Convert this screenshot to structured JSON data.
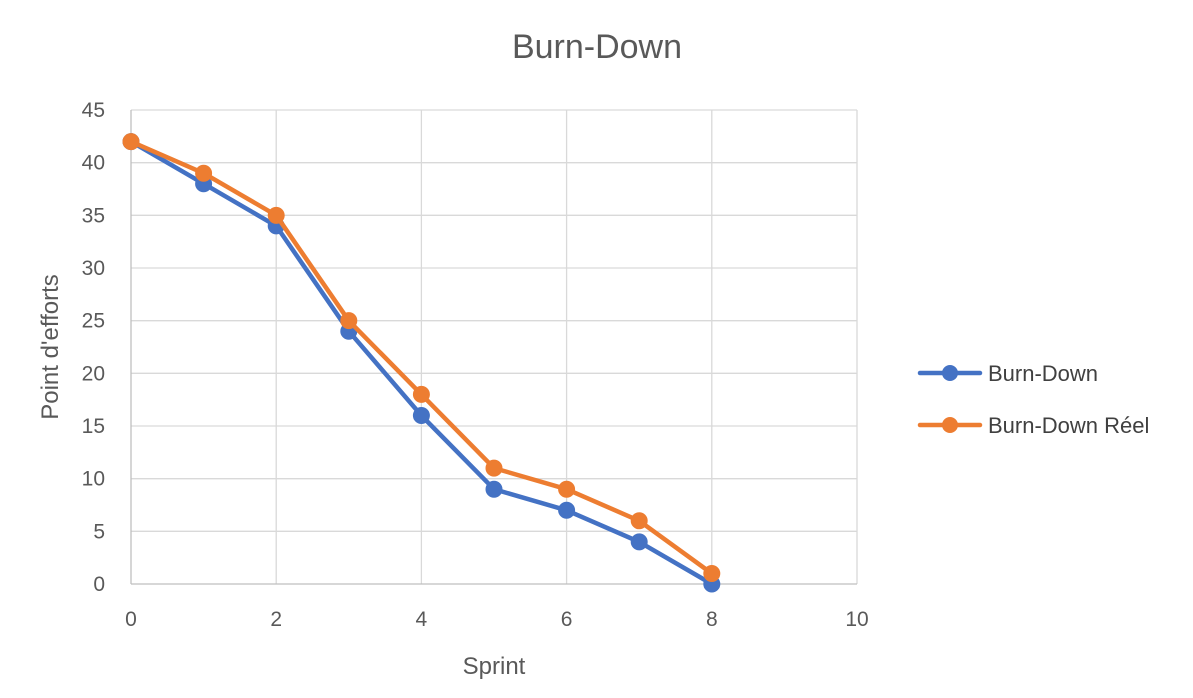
{
  "chart_data": {
    "type": "scatter",
    "title": "Burn-Down",
    "xlabel": "Sprint",
    "ylabel": "Point d'efforts",
    "xlim": [
      0,
      10
    ],
    "ylim": [
      0,
      45
    ],
    "xticks": [
      0,
      2,
      4,
      6,
      8,
      10
    ],
    "yticks": [
      0,
      5,
      10,
      15,
      20,
      25,
      30,
      35,
      40,
      45
    ],
    "grid": true,
    "legend_position": "right",
    "series": [
      {
        "name": "Burn-Down",
        "color": "#4472c4",
        "x": [
          0,
          1,
          2,
          3,
          4,
          5,
          6,
          7,
          8
        ],
        "y": [
          42,
          38,
          34,
          24,
          16,
          9,
          7,
          4,
          0
        ]
      },
      {
        "name": "Burn-Down Réel",
        "color": "#ed7d31",
        "x": [
          0,
          1,
          2,
          3,
          4,
          5,
          6,
          7,
          8
        ],
        "y": [
          42,
          39,
          35,
          25,
          18,
          11,
          9,
          6,
          1
        ]
      }
    ]
  }
}
